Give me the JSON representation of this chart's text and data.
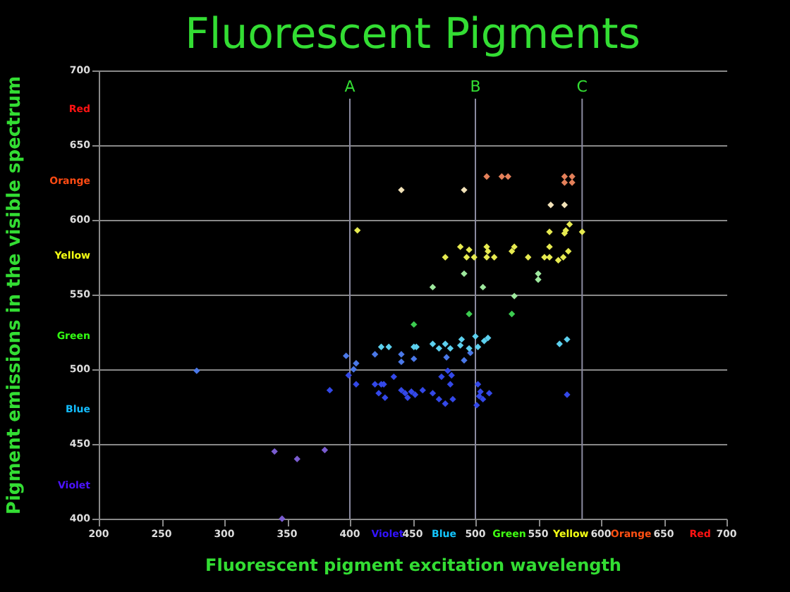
{
  "chart_data": {
    "type": "scatter",
    "title": "Fluorescent Pigments",
    "xlabel": "Fluorescent pigment excitation wavelength",
    "ylabel": "Pigment emissions in the visible spectrum",
    "xlim": [
      200,
      700
    ],
    "xticks": [
      200,
      250,
      300,
      350,
      400,
      {
        "value": 430,
        "label": "Violet"
      },
      450,
      {
        "value": 475,
        "label": "Blue"
      },
      500,
      {
        "value": 527,
        "label": "Green"
      },
      550,
      {
        "value": 576,
        "label": "Yellow"
      },
      600,
      {
        "value": 624,
        "label": "Orange"
      },
      650,
      {
        "value": 679,
        "label": "Red"
      },
      700
    ],
    "ylim": [
      400,
      700
    ],
    "yticks": [
      400,
      {
        "value": 422,
        "label": "Violet"
      },
      450,
      {
        "value": 473,
        "label": "Blue"
      },
      500,
      {
        "value": 522,
        "label": "Green"
      },
      550,
      {
        "value": 576,
        "label": "Yellow"
      },
      600,
      {
        "value": 626,
        "label": "Orange"
      },
      650,
      {
        "value": 674,
        "label": "Red"
      },
      700
    ],
    "grid": "y",
    "marker": "diamond",
    "series": [
      {
        "color": "#7a5cd0",
        "x": [
          340,
          358,
          380,
          346
        ],
        "values": [
          445,
          440,
          446,
          400
        ]
      },
      {
        "color": "#3348e8",
        "x": [
          384,
          420,
          425,
          423,
          428,
          441,
          446,
          452,
          458,
          466,
          405,
          435,
          427,
          449,
          471,
          476,
          482,
          444,
          473,
          478,
          481,
          480,
          502,
          504,
          503,
          511,
          506,
          501,
          573,
          399
        ],
        "values": [
          486,
          490,
          490,
          484,
          481,
          486,
          481,
          483,
          486,
          484,
          490,
          495,
          490,
          485,
          480,
          477,
          480,
          484,
          495,
          499,
          496,
          490,
          490,
          485,
          482,
          484,
          480,
          476,
          483,
          496
        ]
      },
      {
        "color": "#4a78e8",
        "x": [
          278,
          397,
          405,
          403,
          441,
          441,
          451,
          477,
          420,
          491,
          496
        ],
        "values": [
          499,
          509,
          504,
          500,
          510,
          505,
          507,
          508,
          510,
          506,
          511
        ]
      },
      {
        "color": "#5cd0ee",
        "x": [
          425,
          431,
          451,
          453,
          466,
          471,
          476,
          480,
          488,
          489,
          495,
          500,
          502,
          507,
          510,
          567,
          573
        ],
        "values": [
          515,
          515,
          515,
          515,
          517,
          514,
          517,
          514,
          516,
          520,
          514,
          522,
          515,
          519,
          521,
          517,
          520
        ]
      },
      {
        "color": "#3ccc50",
        "x": [
          451,
          495,
          529
        ],
        "values": [
          530,
          537,
          537
        ]
      },
      {
        "color": "#9ee89e",
        "x": [
          466,
          506,
          531,
          550,
          550,
          491
        ],
        "values": [
          555,
          555,
          549,
          560,
          564,
          564
        ]
      },
      {
        "color": "#e6ea50",
        "x": [
          406,
          585,
          559,
          572,
          575,
          571,
          488,
          495,
          509,
          510,
          531,
          529,
          559,
          574,
          476,
          493,
          499,
          509,
          515,
          542,
          555,
          559,
          566,
          570
        ],
        "values": [
          593,
          592,
          592,
          593,
          597,
          591,
          582,
          580,
          582,
          579,
          582,
          579,
          582,
          579,
          575,
          575,
          575,
          575,
          575,
          575,
          575,
          575,
          573,
          575
        ]
      },
      {
        "color": "#f2e2b8",
        "x": [
          441,
          491,
          560,
          571
        ],
        "values": [
          620,
          620,
          610,
          610
        ]
      },
      {
        "color": "#e4805a",
        "x": [
          509,
          521,
          526,
          571,
          577,
          571,
          577
        ],
        "values": [
          629,
          629,
          629,
          629,
          629,
          625,
          625
        ]
      }
    ],
    "ref_lines": [
      {
        "axis": "x",
        "value": 400,
        "label": "A",
        "color": "#8a8aa0"
      },
      {
        "axis": "x",
        "value": 500,
        "label": "B",
        "color": "#8a8aa0"
      },
      {
        "axis": "x",
        "value": 585,
        "label": "C",
        "color": "#8a8aa0"
      }
    ]
  }
}
